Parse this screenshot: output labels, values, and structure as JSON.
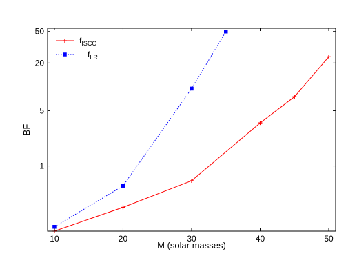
{
  "chart_data": {
    "type": "line",
    "xlabel": "M (solar masses)",
    "ylabel": "BF",
    "xlim": [
      9,
      51
    ],
    "ylim": [
      0.15,
      55
    ],
    "yscale": "log",
    "xticks": [
      10,
      20,
      30,
      40,
      50
    ],
    "yticks": [
      1,
      5,
      20,
      50
    ],
    "legend_position": "top-left",
    "grid": false,
    "series": [
      {
        "name_main": "f",
        "name_sub": "ISCO",
        "color": "#ff0000",
        "linestyle": "solid",
        "marker": "plus",
        "x": [
          10,
          20,
          30,
          40,
          45,
          50
        ],
        "y": [
          0.15,
          0.3,
          0.65,
          3.5,
          7.5,
          24
        ]
      },
      {
        "name_main": "f",
        "name_sub": "LR",
        "color": "#0000ff",
        "linestyle": "dotted",
        "marker": "square",
        "x": [
          10,
          20,
          30,
          35
        ],
        "y": [
          0.17,
          0.56,
          9.5,
          50
        ]
      }
    ],
    "reference_lines": [
      {
        "y": 1,
        "color": "#ff00ff",
        "linestyle": "dotted"
      }
    ]
  }
}
